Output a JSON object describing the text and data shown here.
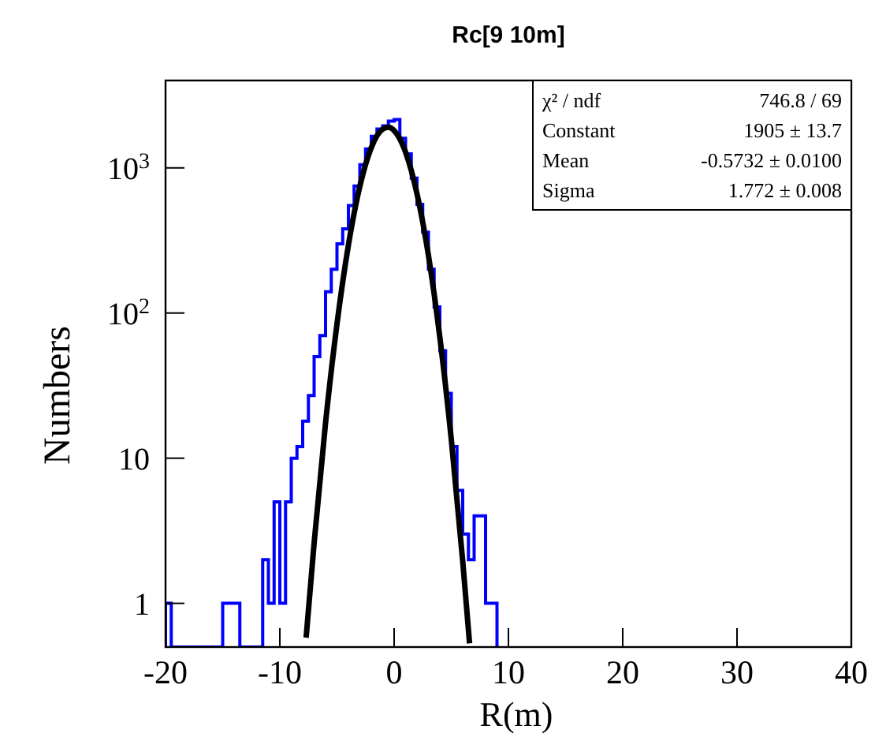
{
  "chart_data": {
    "type": "histogram",
    "title": "Rc[9 10m]",
    "xlabel": "R(m)",
    "ylabel": "Numbers",
    "log": "y",
    "grid": false,
    "xlim": [
      -20,
      40
    ],
    "xticks": [
      -20,
      -10,
      0,
      10,
      20,
      30,
      40
    ],
    "ylim": [
      0.5,
      4000
    ],
    "yticks": [
      1,
      10,
      {
        "value": 100,
        "label": "10$^{2}$"
      },
      {
        "value": 1000,
        "label": "10$^{3}$"
      }
    ],
    "series": [
      {
        "color": "#0000ff",
        "bins": [
          -20,
          -19.5,
          -19,
          -18.5,
          -18,
          -17.5,
          -17,
          -16.5,
          -16,
          -15.5,
          -15,
          -14.5,
          -14,
          -13.5,
          -13,
          -12.5,
          -12,
          -11.5,
          -11,
          -10.5,
          -10,
          -9.5,
          -9,
          -8.5,
          -8,
          -7.5,
          -7,
          -6.5,
          -6,
          -5.5,
          -5,
          -4.5,
          -4,
          -3.5,
          -3,
          -2.5,
          -2,
          -1.5,
          -1,
          -0.5,
          0,
          0.5,
          1,
          1.5,
          2,
          2.5,
          3,
          3.5,
          4,
          4.5,
          5,
          5.5,
          6,
          6.5,
          7,
          7.5,
          8,
          8.5,
          9
        ],
        "values": [
          1,
          null,
          null,
          null,
          null,
          null,
          null,
          null,
          null,
          null,
          1,
          1,
          1,
          null,
          null,
          null,
          null,
          2,
          1,
          5,
          1,
          5,
          10,
          12,
          18,
          27,
          50,
          70,
          140,
          200,
          300,
          380,
          550,
          750,
          1050,
          1350,
          1650,
          1850,
          1950,
          2100,
          2150,
          1600,
          1250,
          850,
          560,
          360,
          200,
          110,
          55,
          28,
          12,
          6,
          3,
          2,
          4,
          4,
          1,
          1
        ]
      },
      {
        "type": "line",
        "color": "#000000",
        "x": [
          -7.7,
          -7,
          -6,
          -5,
          -4,
          -3,
          -2,
          -1,
          -0.5,
          0,
          1,
          2,
          3,
          4,
          5,
          6,
          6.6
        ],
        "values": [
          0.58,
          2.6,
          17.5,
          84,
          294,
          746,
          1378,
          1850,
          1905,
          1808,
          1285,
          664,
          250,
          68,
          13.5,
          1.96,
          0.53
        ]
      }
    ],
    "annotations": [
      "χ² / ndf",
      "746.8 / 69",
      "Constant",
      "1905 ± 13.7",
      "Mean",
      "-0.5732 ± 0.0100",
      "Sigma",
      "1.772 ± 0.008"
    ]
  }
}
